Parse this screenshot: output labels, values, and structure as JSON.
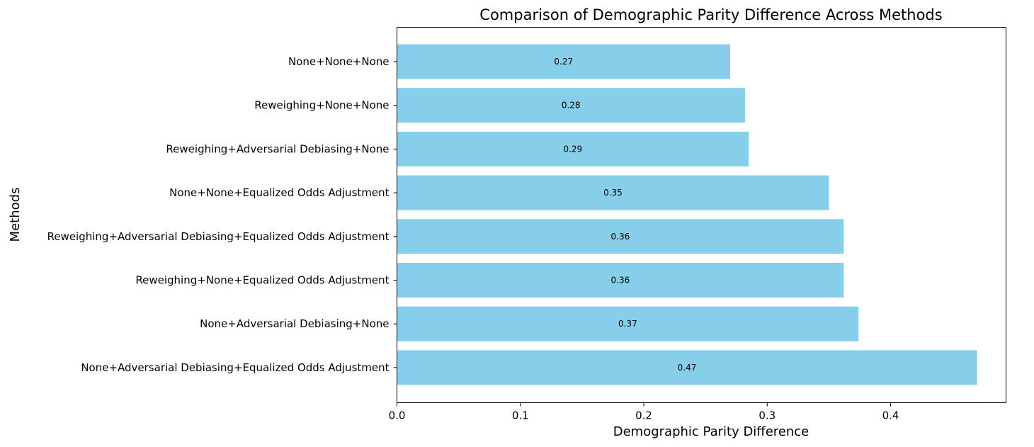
{
  "chart_data": {
    "type": "bar",
    "orientation": "horizontal",
    "title": "Comparison of Demographic Parity Difference Across Methods",
    "xlabel": "Demographic Parity Difference",
    "ylabel": "Methods",
    "categories": [
      "None+None+None",
      "Reweighing+None+None",
      "Reweighing+Adversarial Debiasing+None",
      "None+None+Equalized Odds Adjustment",
      "Reweighing+Adversarial Debiasing+Equalized Odds Adjustment",
      "Reweighing+None+Equalized Odds Adjustment",
      "None+Adversarial Debiasing+None",
      "None+Adversarial Debiasing+Equalized Odds Adjustment"
    ],
    "values": [
      0.27,
      0.282,
      0.285,
      0.35,
      0.362,
      0.362,
      0.374,
      0.47
    ],
    "data_labels": [
      "0.27",
      "0.28",
      "0.29",
      "0.35",
      "0.36",
      "0.36",
      "0.37",
      "0.47"
    ],
    "xticks": [
      0.0,
      0.1,
      0.2,
      0.3,
      0.4
    ],
    "xtick_labels": [
      "0.0",
      "0.1",
      "0.2",
      "0.3",
      "0.4"
    ],
    "xlim": [
      0,
      0.4935
    ],
    "grid": false,
    "bar_color": "#87ceeb"
  }
}
